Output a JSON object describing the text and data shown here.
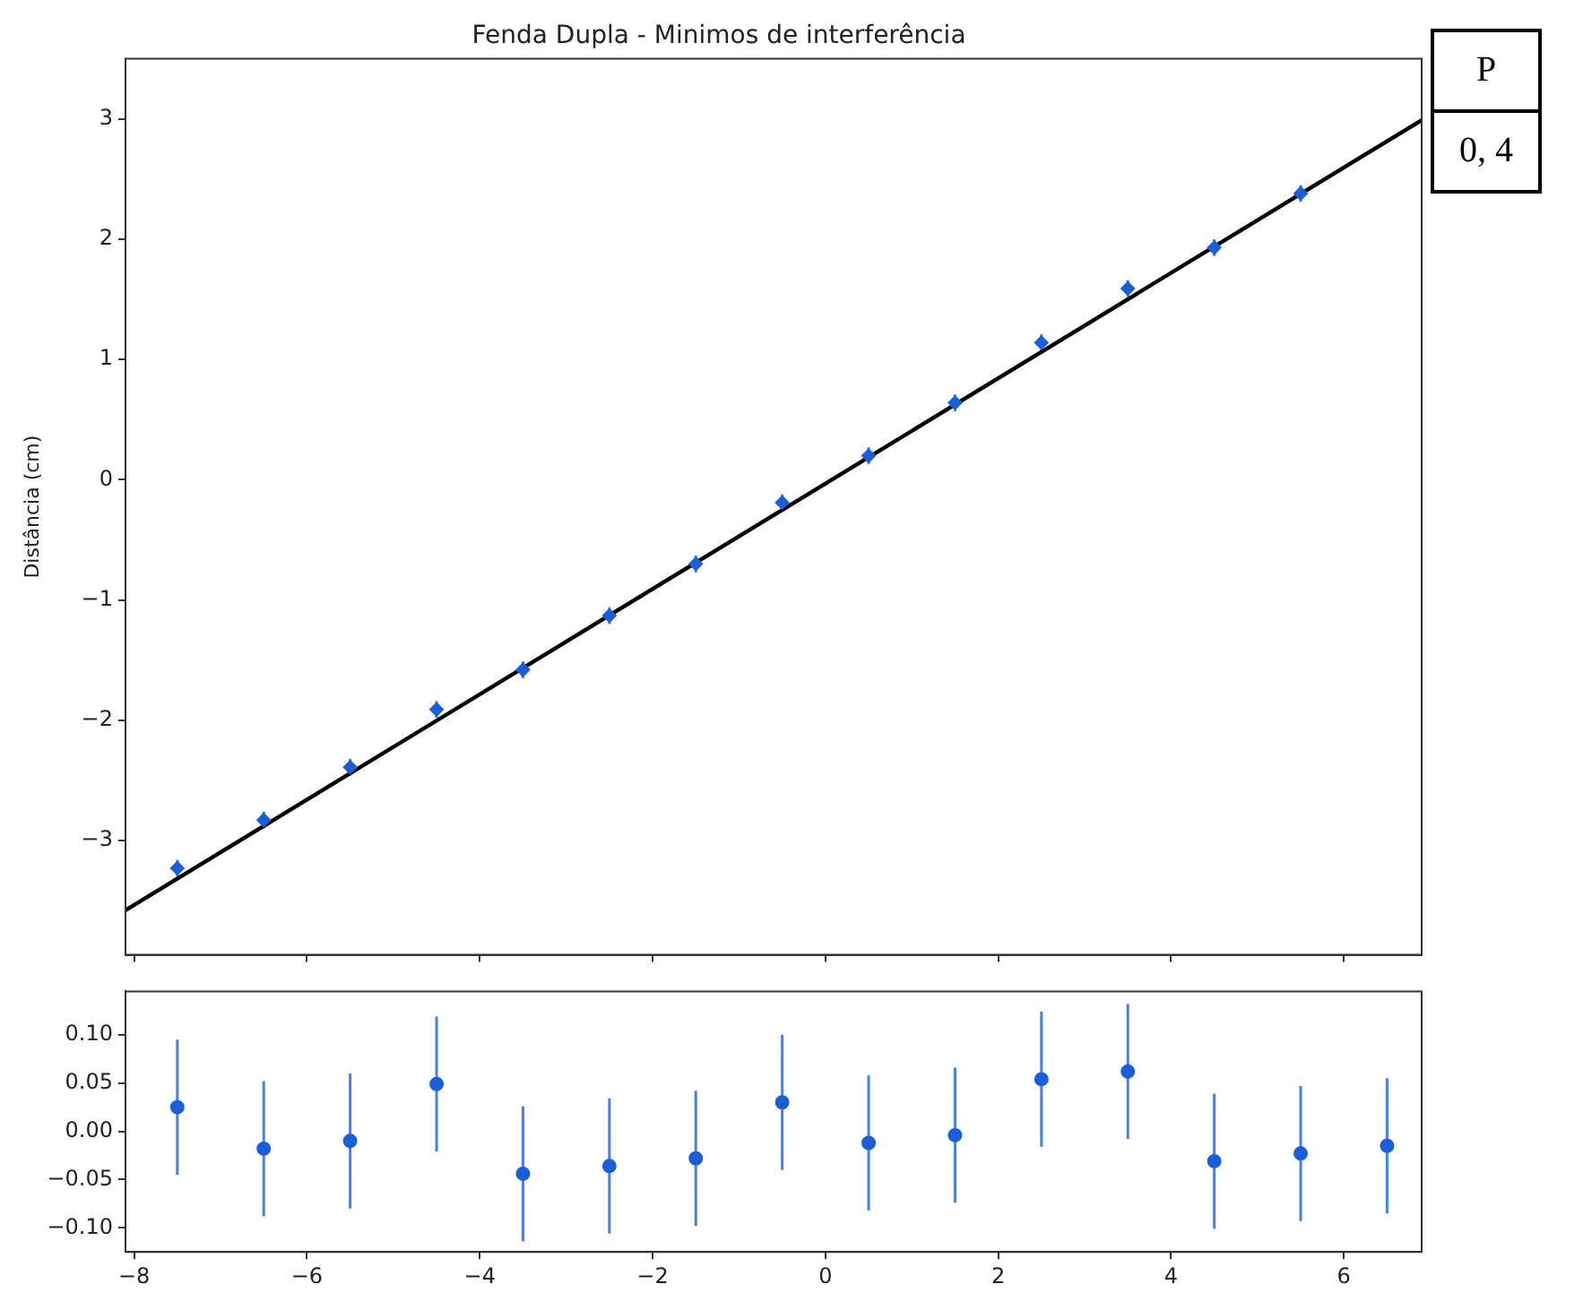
{
  "chart_data": [
    {
      "type": "scatter",
      "title": "Fenda Dupla - Minimos de interferência",
      "ylabel": "Distância (cm)",
      "xlim": [
        -8.1,
        6.9
      ],
      "xticks": [
        {
          "value": -8,
          "label": null
        },
        {
          "value": -6,
          "label": null
        },
        {
          "value": -4,
          "label": null
        },
        {
          "value": -2,
          "label": null
        },
        {
          "value": 0,
          "label": null
        },
        {
          "value": 2,
          "label": null
        },
        {
          "value": 4,
          "label": null
        },
        {
          "value": 6,
          "label": null
        }
      ],
      "ylim": [
        -3.95,
        3.5
      ],
      "yticks": [
        {
          "value": -3,
          "label": "−3"
        },
        {
          "value": -2,
          "label": "−2"
        },
        {
          "value": -1,
          "label": "−1"
        },
        0,
        1,
        2,
        3
      ],
      "tick_labels": "y",
      "grid": false,
      "legend": false,
      "annotations": [
        "P",
        "0, 4"
      ],
      "series": [
        {
          "type": "scatter",
          "marker": "diamond",
          "color": "#1a5fd9",
          "x": [
            -7.5,
            -6.5,
            -5.5,
            -4.5,
            -3.5,
            -2.5,
            -1.5,
            -0.5,
            0.5,
            1.5,
            2.5,
            3.5,
            4.5,
            5.5
          ],
          "values": [
            -3.23,
            -2.83,
            -2.39,
            -1.91,
            -1.58,
            -1.13,
            -0.7,
            -0.19,
            0.2,
            0.64,
            1.14,
            1.59,
            1.93,
            2.38
          ],
          "errors": [
            0.07,
            0.07,
            0.07,
            0.07,
            0.07,
            0.07,
            0.07,
            0.07,
            0.07,
            0.07,
            0.07,
            0.07,
            0.07,
            0.07
          ]
        },
        {
          "type": "line",
          "marker": "none",
          "color": "#000000",
          "x": [
            -8.1,
            6.9
          ],
          "values": [
            -3.58,
            2.99
          ]
        }
      ]
    },
    {
      "type": "scatter",
      "xlim": [
        -8.1,
        6.9
      ],
      "xticks": [
        {
          "value": -8,
          "label": "−8"
        },
        {
          "value": -6,
          "label": "−6"
        },
        {
          "value": -4,
          "label": "−4"
        },
        {
          "value": -2,
          "label": "−2"
        },
        0,
        2,
        4,
        6
      ],
      "ylim": [
        -0.125,
        0.145
      ],
      "yticks": [
        {
          "value": -0.1,
          "label": "−0.10"
        },
        {
          "value": -0.05,
          "label": "−0.05"
        },
        {
          "value": 0,
          "label": "0.00"
        },
        {
          "value": 0.05,
          "label": "0.05"
        },
        {
          "value": 0.1,
          "label": "0.10"
        }
      ],
      "grid": false,
      "legend": false,
      "marker": "circle",
      "series": [
        {
          "type": "scatter",
          "color": "#1a5fd9",
          "x": [
            -7.5,
            -6.5,
            -5.5,
            -4.5,
            -3.5,
            -2.5,
            -1.5,
            -0.5,
            0.5,
            1.5,
            2.5,
            3.5,
            4.5,
            5.5,
            6.5
          ],
          "values": [
            0.025,
            -0.018,
            -0.01,
            0.049,
            -0.044,
            -0.036,
            -0.028,
            0.03,
            -0.012,
            -0.004,
            0.054,
            0.062,
            -0.031,
            -0.023,
            -0.015
          ],
          "errors": [
            0.07,
            0.07,
            0.07,
            0.07,
            0.07,
            0.07,
            0.07,
            0.07,
            0.07,
            0.07,
            0.07,
            0.07,
            0.07,
            0.07,
            0.07
          ]
        }
      ]
    }
  ]
}
